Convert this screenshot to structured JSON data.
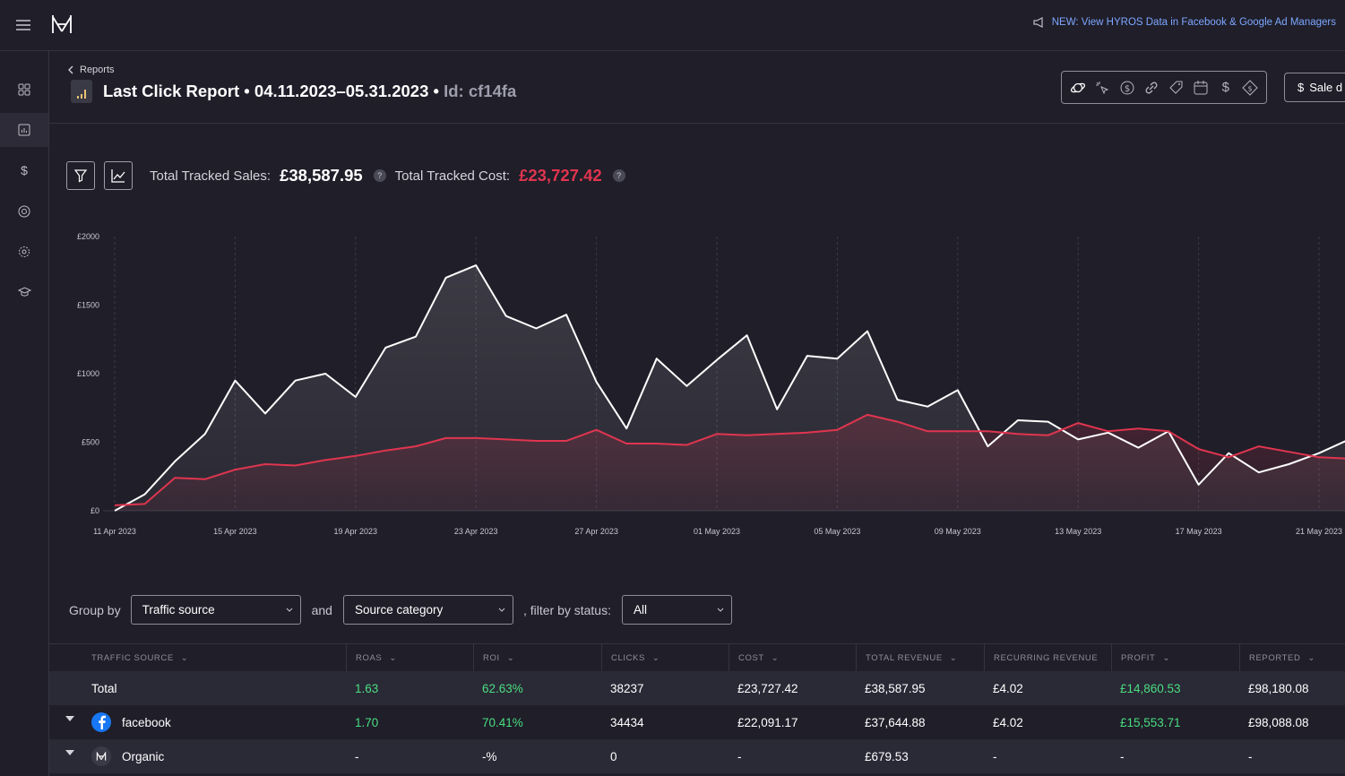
{
  "banner": {
    "text": "NEW: View HYROS Data in Facebook & Google Ad Managers"
  },
  "sidebar": {
    "items": [
      "dashboard",
      "reports",
      "sales",
      "goals",
      "settings",
      "academy"
    ]
  },
  "header": {
    "breadcrumb": "Reports",
    "title": "Last Click Report • 04.11.2023–05.31.2023 •",
    "id_label": "Id: cf14fa",
    "sale_button": "Sale d"
  },
  "totals": {
    "sales_label": "Total Tracked Sales:",
    "sales_value": "£38,587.95",
    "cost_label": "Total Tracked Cost:",
    "cost_value": "£23,727.42",
    "help": "?"
  },
  "colors": {
    "sales_line": "#ffffff",
    "cost_line": "#e0354f",
    "accent": "#7ea7ff",
    "positive": "#4ade80"
  },
  "chart_data": {
    "type": "line",
    "x": [
      "11 Apr 2023",
      "12 Apr 2023",
      "13 Apr 2023",
      "14 Apr 2023",
      "15 Apr 2023",
      "16 Apr 2023",
      "17 Apr 2023",
      "18 Apr 2023",
      "19 Apr 2023",
      "20 Apr 2023",
      "21 Apr 2023",
      "22 Apr 2023",
      "23 Apr 2023",
      "24 Apr 2023",
      "25 Apr 2023",
      "26 Apr 2023",
      "27 Apr 2023",
      "28 Apr 2023",
      "29 Apr 2023",
      "30 Apr 2023",
      "01 May 2023",
      "02 May 2023",
      "03 May 2023",
      "04 May 2023",
      "05 May 2023",
      "06 May 2023",
      "07 May 2023",
      "08 May 2023",
      "09 May 2023",
      "10 May 2023",
      "11 May 2023",
      "12 May 2023",
      "13 May 2023",
      "14 May 2023",
      "15 May 2023",
      "16 May 2023",
      "17 May 2023",
      "18 May 2023",
      "19 May 2023",
      "20 May 2023",
      "21 May 2023",
      "22 May 2023"
    ],
    "tick_labels": [
      "11 Apr 2023",
      "15 Apr 2023",
      "19 Apr 2023",
      "23 Apr 2023",
      "27 Apr 2023",
      "01 May 2023",
      "05 May 2023",
      "09 May 2023",
      "13 May 2023",
      "17 May 2023",
      "21 May 2023"
    ],
    "y_ticks": [
      "£0",
      "£500",
      "£1000",
      "£1500",
      "£2000"
    ],
    "ylim": [
      0,
      2000
    ],
    "grid": "vertical dashed",
    "series": [
      {
        "values": [
          0,
          120,
          360,
          560,
          950,
          710,
          950,
          1000,
          830,
          1190,
          1270,
          1700,
          1790,
          1420,
          1330,
          1430,
          940,
          600,
          1110,
          910,
          1100,
          1280,
          740,
          1130,
          1110,
          1310,
          810,
          760,
          880,
          470,
          660,
          650,
          520,
          570,
          460,
          580,
          190,
          420,
          280,
          340,
          420,
          520
        ]
      },
      {
        "values": [
          40,
          50,
          240,
          230,
          300,
          340,
          330,
          370,
          400,
          440,
          470,
          530,
          530,
          520,
          510,
          510,
          590,
          490,
          490,
          480,
          560,
          550,
          560,
          570,
          590,
          700,
          650,
          580,
          580,
          580,
          560,
          550,
          640,
          580,
          600,
          580,
          450,
          390,
          470,
          430,
          390,
          380
        ]
      }
    ]
  },
  "groupby": {
    "label": "Group by",
    "primary": "Traffic source",
    "and_label": "and",
    "secondary": "Source category",
    "status_label": ", filter by status:",
    "status": "All"
  },
  "table": {
    "columns": [
      "TRAFFIC SOURCE",
      "ROAS",
      "ROI",
      "CLICKS",
      "COST",
      "TOTAL REVENUE",
      "RECURRING REVENUE",
      "PROFIT",
      "REPORTED"
    ],
    "rows": [
      {
        "source": "Total",
        "roas": "1.63",
        "roi": "62.63%",
        "clicks": "38237",
        "cost": "£23,727.42",
        "revenue": "£38,587.95",
        "recurring": "£4.02",
        "profit": "£14,860.53",
        "reported": "£98,180.08"
      },
      {
        "source": "facebook",
        "roas": "1.70",
        "roi": "70.41%",
        "clicks": "34434",
        "cost": "£22,091.17",
        "revenue": "£37,644.88",
        "recurring": "£4.02",
        "profit": "£15,553.71",
        "reported": "£98,088.08"
      },
      {
        "source": "Organic",
        "roas": "-",
        "roi": "-%",
        "clicks": "0",
        "cost": "-",
        "revenue": "£679.53",
        "recurring": "-",
        "profit": "-",
        "reported": "-"
      }
    ]
  }
}
